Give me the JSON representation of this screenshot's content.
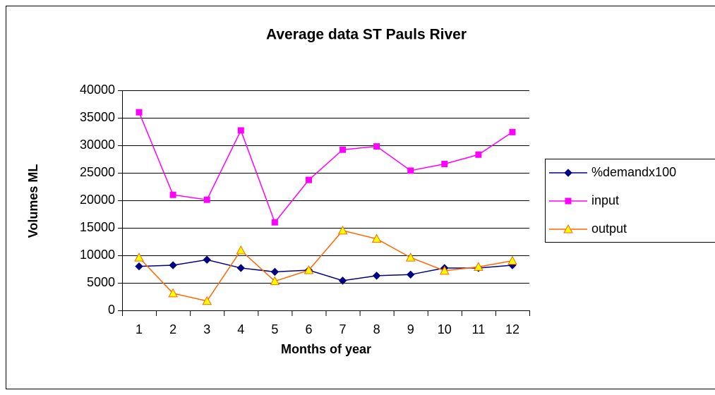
{
  "chart_data": {
    "type": "line",
    "title": "Average data ST Pauls River",
    "x_label": "Months of year",
    "y_label": "Volumes ML",
    "categories": [
      "1",
      "2",
      "3",
      "4",
      "5",
      "6",
      "7",
      "8",
      "9",
      "10",
      "11",
      "12"
    ],
    "series": [
      {
        "name": "%demandx100",
        "color": "#000080",
        "marker": "diamond",
        "values": [
          8000,
          8200,
          9200,
          7700,
          7000,
          7300,
          5400,
          6300,
          6500,
          7700,
          7700,
          8200
        ]
      },
      {
        "name": "input",
        "color": "#ff00ff",
        "marker": "square",
        "values": [
          36000,
          21000,
          20100,
          32700,
          16000,
          23700,
          29200,
          29800,
          25400,
          26600,
          28300,
          32400
        ]
      },
      {
        "name": "output",
        "color": "#ff6600",
        "marker": "triangle",
        "values": [
          9600,
          3100,
          1700,
          10900,
          5300,
          7300,
          14500,
          13000,
          9600,
          7200,
          7900,
          9000
        ]
      }
    ],
    "ylim": [
      0,
      40000
    ],
    "yticks": [
      0,
      5000,
      10000,
      15000,
      20000,
      25000,
      30000,
      35000,
      40000
    ],
    "grid": true,
    "legend": "right"
  }
}
